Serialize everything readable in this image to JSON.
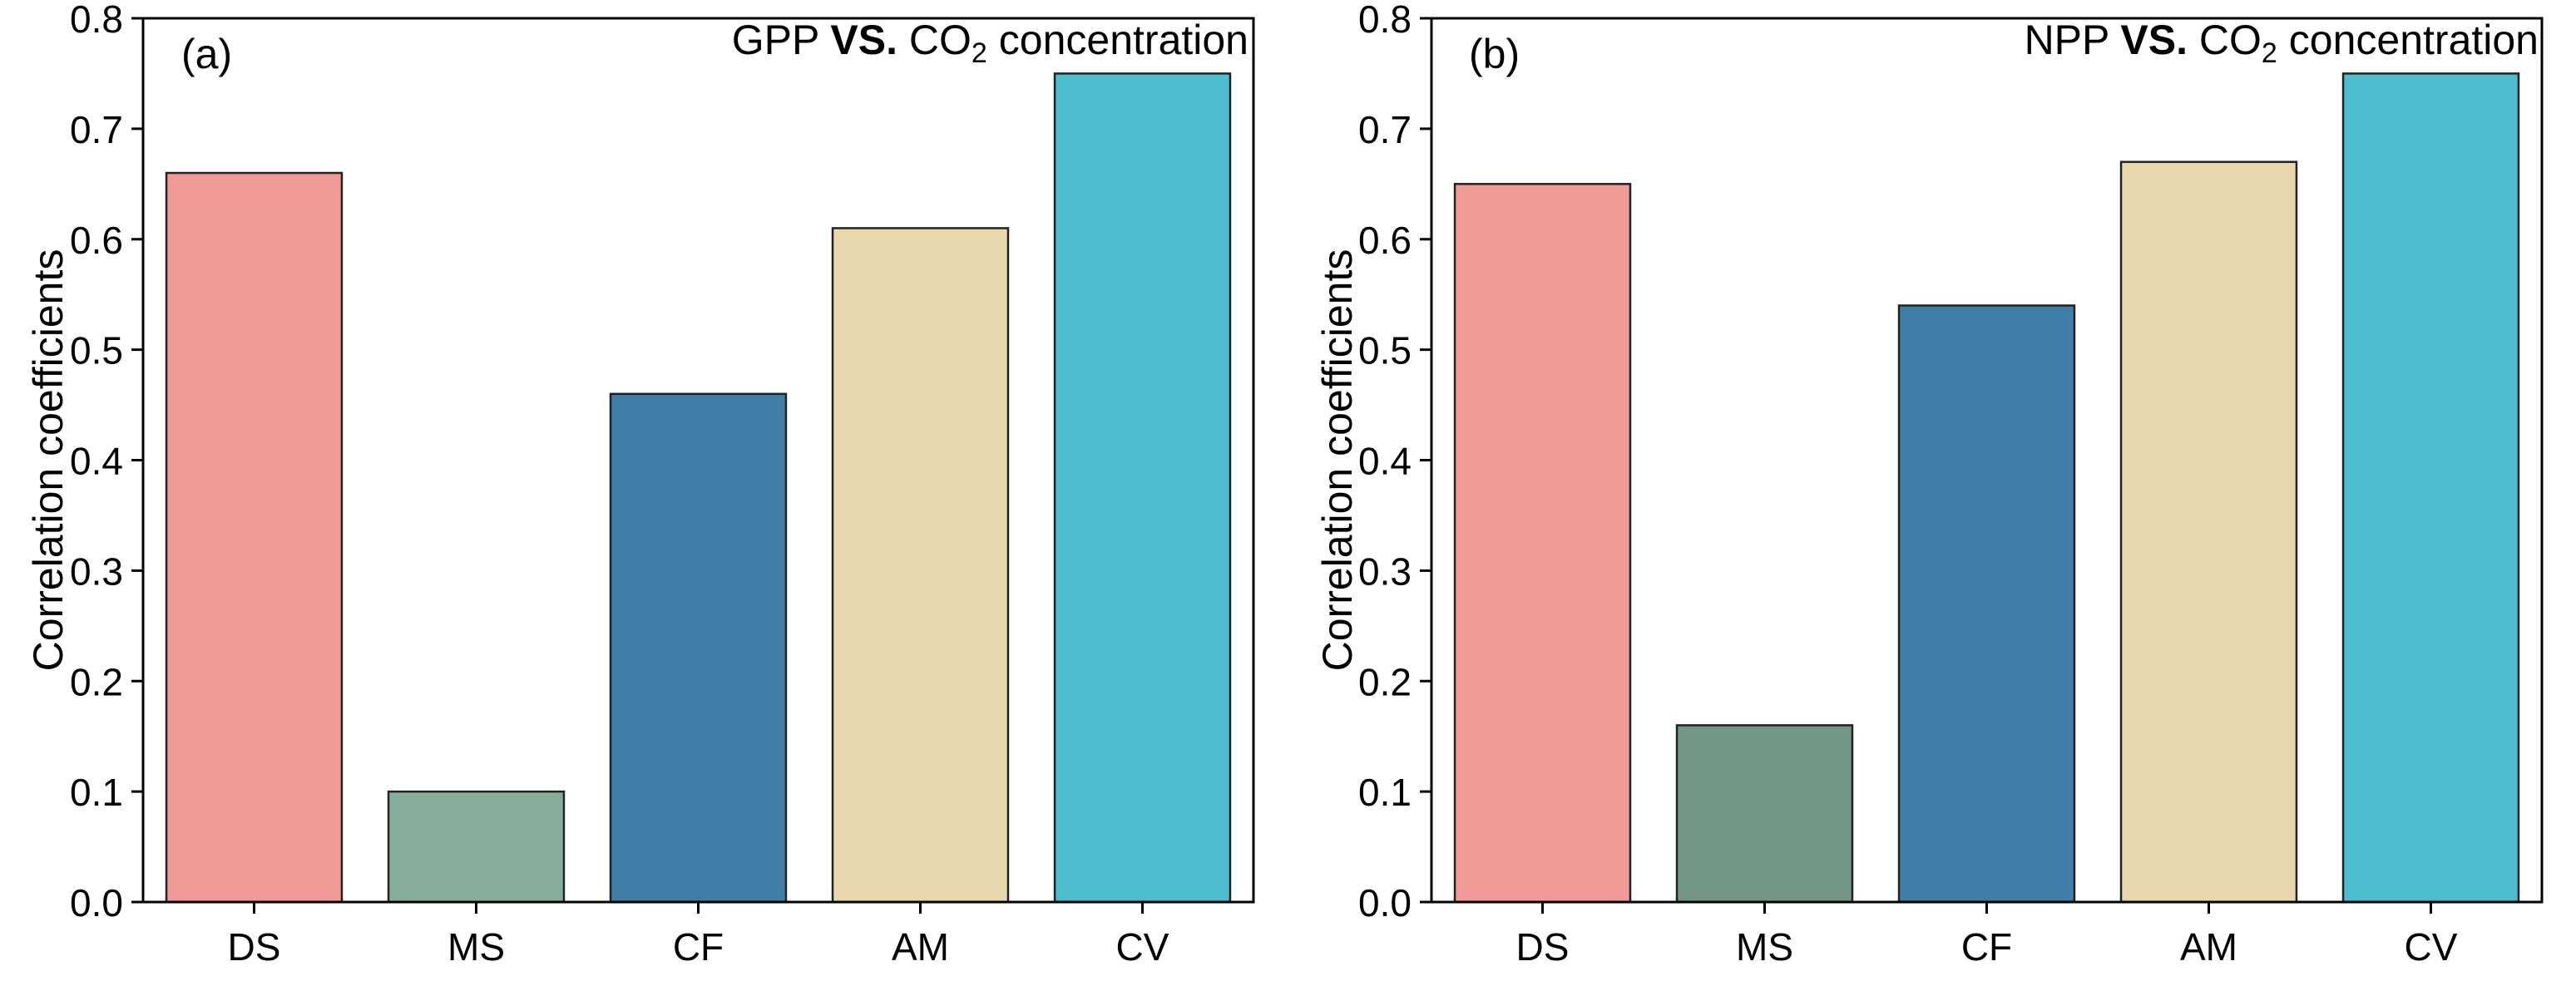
{
  "chart_data": [
    {
      "type": "bar",
      "panel_label": "(a)",
      "title": {
        "main": "GPP",
        "vs": "VS.",
        "co": "CO",
        "subscript": "2",
        "rest": "concentration"
      },
      "ylabel": "Correlation coefficients",
      "xlabel": "",
      "ylim": [
        0,
        0.8
      ],
      "yticks": [
        "0.0",
        "0.1",
        "0.2",
        "0.3",
        "0.4",
        "0.5",
        "0.6",
        "0.7",
        "0.8"
      ],
      "categories": [
        "DS",
        "MS",
        "CF",
        "AM",
        "CV"
      ],
      "values": [
        0.66,
        0.1,
        0.46,
        0.61,
        0.75
      ],
      "colors": [
        "#ef9a97",
        "#85ad9a",
        "#3f7ea6",
        "#e6d7ac",
        "#4dbccd"
      ]
    },
    {
      "type": "bar",
      "panel_label": "(b)",
      "title": {
        "main": "NPP",
        "vs": "VS.",
        "co": "CO",
        "subscript": "2",
        "rest": "concentration"
      },
      "ylabel": "Correlation coefficients",
      "xlabel": "",
      "ylim": [
        0,
        0.8
      ],
      "yticks": [
        "0.0",
        "0.1",
        "0.2",
        "0.3",
        "0.4",
        "0.5",
        "0.6",
        "0.7",
        "0.8"
      ],
      "categories": [
        "DS",
        "MS",
        "CF",
        "AM",
        "CV"
      ],
      "values": [
        0.65,
        0.16,
        0.54,
        0.67,
        0.75
      ],
      "colors": [
        "#ef9a97",
        "#739686",
        "#3f7ea6",
        "#e6d7ac",
        "#4dbccd"
      ]
    }
  ]
}
